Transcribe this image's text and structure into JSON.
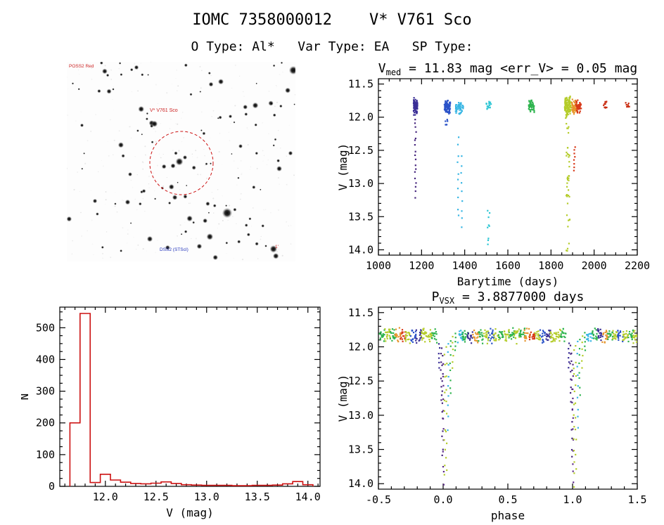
{
  "header": {
    "title_line1": "IOMC 7358000012    V* V761 Sco",
    "title_line2": "O Type: Al*   Var Type: EA   SP Type:"
  },
  "starfield": {
    "circle_color": "#cc1111",
    "annotations": {
      "top_left": "POSS2 Red",
      "center": "V* V761 Sco",
      "bottom_blue": "DSS2 (STScI)",
      "bottom_right": "1'"
    }
  },
  "chart_data": [
    {
      "type": "scatter",
      "id": "lightcurve",
      "title_parts": {
        "pre": "V",
        "sub": "med",
        "post": " = 11.83 mag <err_V> = 0.05 mag"
      },
      "v_med_mag": 11.83,
      "err_v_mag": 0.05,
      "xlabel": "Barytime (days)",
      "ylabel": "V (mag)",
      "y_axis_inverted": true,
      "xlim": [
        1000,
        2200
      ],
      "ytop": 11.42,
      "ybot": 14.08,
      "xticks": [
        1000,
        1200,
        1400,
        1600,
        1800,
        2000,
        2200
      ],
      "yticks": [
        11.5,
        12.0,
        12.5,
        13.0,
        13.5,
        14.0
      ],
      "xminor": 50,
      "yminor": 0.1,
      "xdec": 0,
      "ydec": 1,
      "clusters": [
        {
          "x": [
            1163,
            1181
          ],
          "y": [
            11.7,
            11.97
          ],
          "n": 100,
          "c": "#3b2f96",
          "m": "dense"
        },
        {
          "x": [
            1169,
            1175
          ],
          "y": [
            12.0,
            13.22
          ],
          "n": 18,
          "c": "#46257d",
          "m": "col"
        },
        {
          "x": [
            1306,
            1333
          ],
          "y": [
            11.72,
            11.96
          ],
          "n": 80,
          "c": "#2a52c8",
          "m": "dense"
        },
        {
          "x": [
            1310,
            1321
          ],
          "y": [
            12.02,
            12.12
          ],
          "n": 6,
          "c": "#2a52c8",
          "m": "scatter"
        },
        {
          "x": [
            1358,
            1393
          ],
          "y": [
            11.74,
            11.97
          ],
          "n": 50,
          "c": "#38b6e4",
          "m": "dense"
        },
        {
          "x": [
            1366,
            1372
          ],
          "y": [
            12.3,
            13.5
          ],
          "n": 10,
          "c": "#38b6e4",
          "m": "col"
        },
        {
          "x": [
            1383,
            1389
          ],
          "y": [
            12.6,
            13.66
          ],
          "n": 9,
          "c": "#38b6e4",
          "m": "col"
        },
        {
          "x": [
            1499,
            1523
          ],
          "y": [
            11.76,
            11.88
          ],
          "n": 16,
          "c": "#2cc6d4",
          "m": "scatter"
        },
        {
          "x": [
            1504,
            1516
          ],
          "y": [
            13.35,
            14.0
          ],
          "n": 9,
          "c": "#2cc6d4",
          "m": "scatter"
        },
        {
          "x": [
            1697,
            1723
          ],
          "y": [
            11.72,
            11.94
          ],
          "n": 50,
          "c": "#2eb44e",
          "m": "dense"
        },
        {
          "x": [
            1864,
            1893
          ],
          "y": [
            11.66,
            12.03
          ],
          "n": 110,
          "c": "#b4cc2a",
          "m": "dense"
        },
        {
          "x": [
            1871,
            1887
          ],
          "y": [
            12.05,
            14.06
          ],
          "n": 40,
          "c": "#b4cc2a",
          "m": "scatter"
        },
        {
          "x": [
            1897,
            1926
          ],
          "y": [
            11.72,
            11.97
          ],
          "n": 60,
          "c": "#e6952c",
          "m": "dense"
        },
        {
          "x": [
            1914,
            1940
          ],
          "y": [
            11.73,
            11.96
          ],
          "n": 40,
          "c": "#d83a1a",
          "m": "dense"
        },
        {
          "x": [
            1906,
            1913
          ],
          "y": [
            12.45,
            12.8
          ],
          "n": 8,
          "c": "#d83a1a",
          "m": "col"
        },
        {
          "x": [
            2043,
            2062
          ],
          "y": [
            11.76,
            11.87
          ],
          "n": 12,
          "c": "#c82a0e",
          "m": "scatter"
        },
        {
          "x": [
            2146,
            2164
          ],
          "y": [
            11.78,
            11.85
          ],
          "n": 8,
          "c": "#c82a0e",
          "m": "scatter"
        }
      ]
    },
    {
      "type": "histogram",
      "id": "histogram",
      "xlabel": "V (mag)",
      "ylabel": "N",
      "color": "#cc1111",
      "xlim": [
        11.55,
        14.12
      ],
      "ytop": 565,
      "ybot": 0,
      "xticks": [
        12.0,
        12.5,
        13.0,
        13.5,
        14.0
      ],
      "yticks": [
        0,
        100,
        200,
        300,
        400,
        500
      ],
      "xminor": 0.1,
      "yminor": 25,
      "xdec": 1,
      "ydec": 0,
      "bin_start": 11.65,
      "bin_width": 0.1,
      "counts": [
        200,
        545,
        12,
        38,
        20,
        13,
        9,
        8,
        10,
        14,
        9,
        5,
        4,
        3,
        3,
        3,
        2,
        2,
        3,
        3,
        4,
        8,
        15,
        5
      ]
    },
    {
      "type": "scatter",
      "id": "phase",
      "title_parts": {
        "pre": "P",
        "sub": "VSX",
        "post": " = 3.8877000 days"
      },
      "period_days": 3.8877,
      "xlabel": "phase",
      "ylabel": "V (mag)",
      "y_axis_inverted": true,
      "xlim": [
        -0.5,
        1.5
      ],
      "ytop": 11.42,
      "ybot": 14.08,
      "xticks": [
        -0.5,
        0.0,
        0.5,
        1.0,
        1.5
      ],
      "yticks": [
        11.5,
        12.0,
        12.5,
        13.0,
        13.5,
        14.0
      ],
      "xminor": 0.1,
      "yminor": 0.1,
      "xdec": 1,
      "ydec": 1,
      "band_y": [
        11.72,
        11.96
      ],
      "band": [
        [
          -0.47,
          "#2eb44e"
        ],
        [
          -0.43,
          "#b4cc2a"
        ],
        [
          -0.39,
          "#2eb44e"
        ],
        [
          -0.35,
          "#e6952c"
        ],
        [
          -0.31,
          "#d83a1a"
        ],
        [
          -0.27,
          "#b4cc2a"
        ],
        [
          -0.23,
          "#2a52c8"
        ],
        [
          -0.19,
          "#3b2f96"
        ],
        [
          -0.15,
          "#b4cc2a"
        ],
        [
          -0.11,
          "#b4cc2a"
        ],
        [
          -0.07,
          "#2eb44e"
        ],
        [
          0.13,
          "#38b6e4"
        ],
        [
          0.17,
          "#2eb44e"
        ],
        [
          0.21,
          "#3b2f96"
        ],
        [
          0.25,
          "#e6952c"
        ],
        [
          0.29,
          "#2eb44e"
        ],
        [
          0.33,
          "#b4cc2a"
        ],
        [
          0.37,
          "#2a52c8"
        ],
        [
          0.41,
          "#b4cc2a"
        ],
        [
          0.45,
          "#2eb44e"
        ],
        [
          0.49,
          "#b4cc2a"
        ]
      ],
      "eclipse": [
        [
          -0.03,
          11.95,
          12.3,
          "#3b2f96",
          6
        ],
        [
          -0.015,
          12.0,
          12.8,
          "#46257d",
          8
        ],
        [
          -0.005,
          12.1,
          13.6,
          "#46257d",
          12
        ],
        [
          0.003,
          12.3,
          14.02,
          "#5c2a8a",
          12
        ],
        [
          0.012,
          12.1,
          14.05,
          "#b4cc2a",
          12
        ],
        [
          0.025,
          12.0,
          13.8,
          "#b4cc2a",
          10
        ],
        [
          0.04,
          11.95,
          13.2,
          "#38b6e4",
          9
        ],
        [
          0.055,
          11.9,
          12.7,
          "#2eb44e",
          8
        ],
        [
          0.075,
          11.85,
          12.3,
          "#b4cc2a",
          6
        ],
        [
          0.095,
          11.8,
          12.05,
          "#2eb44e",
          5
        ]
      ]
    }
  ]
}
